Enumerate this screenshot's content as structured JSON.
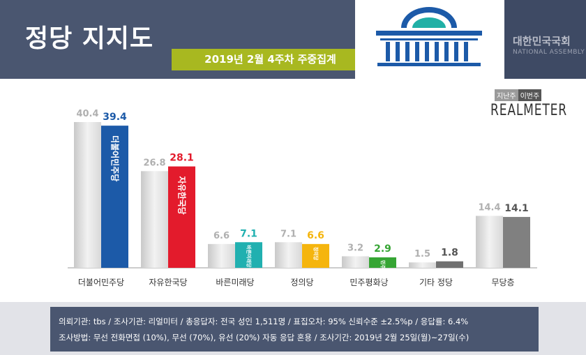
{
  "header": {
    "title": "정당 지지도",
    "subtitle": "2019년 2월 4주차 주중집계",
    "assembly_ko": "대한민국국회",
    "assembly_en": "NATIONAL ASSEMBLY"
  },
  "legend": {
    "prev_label": "지난주",
    "current_label": "이번주",
    "brand": "REALMETER"
  },
  "colors": {
    "header_bg": "#4a5670",
    "subtitle_bg": "#a8b820",
    "prev_bar": "#d4d4d4",
    "democratic": "#1c5aa8",
    "liberty_korea": "#e31b2c",
    "bareunmirae": "#21b0b0",
    "justice": "#f5b50e",
    "peace": "#36a534",
    "other": "#707070",
    "independent": "#808080"
  },
  "chart_data": {
    "type": "bar",
    "categories": [
      "더불어민주당",
      "자유한국당",
      "바른미래당",
      "정의당",
      "민주평화당",
      "기타 정당",
      "무당층"
    ],
    "series": [
      {
        "name": "지난주",
        "values": [
          40.4,
          26.8,
          6.6,
          7.1,
          3.2,
          1.5,
          14.4
        ]
      },
      {
        "name": "이번주",
        "values": [
          39.4,
          28.1,
          7.1,
          6.6,
          2.9,
          1.8,
          14.1
        ]
      }
    ],
    "value_labels_prev": [
      "40.4",
      "26.8",
      "6.6",
      "7.1",
      "3.2",
      "1.5",
      "14.4"
    ],
    "value_labels_cur": [
      "39.4",
      "28.1",
      "7.1",
      "6.6",
      "2.9",
      "1.8",
      "14.1"
    ],
    "current_colors": [
      "#1c5aa8",
      "#e31b2c",
      "#21b0b0",
      "#f5b50e",
      "#36a534",
      "#707070",
      "#808080"
    ],
    "current_label_colors": [
      "#1c5aa8",
      "#e31b2c",
      "#21b0b0",
      "#f5b50e",
      "#36a534",
      "#555555",
      "#555555"
    ],
    "bar_texts": [
      "더불어민주당",
      "자유한국당",
      "바른미래당",
      "정의당",
      "민주평화당",
      "",
      ""
    ],
    "ylim": [
      0,
      45
    ]
  },
  "footer": {
    "line1": "의뢰기관: tbs / 조사기관: 리얼미터 / 총응답자: 전국 성인 1,511명 / 표집오차: 95% 신뢰수준 ±2.5%p / 응답률: 6.4%",
    "line2": "조사방법: 무선 전화면접 (10%), 무선 (70%), 유선 (20%) 자동 응답 혼용 / 조사기간: 2019년 2월 25일(월)~27일(수)"
  }
}
